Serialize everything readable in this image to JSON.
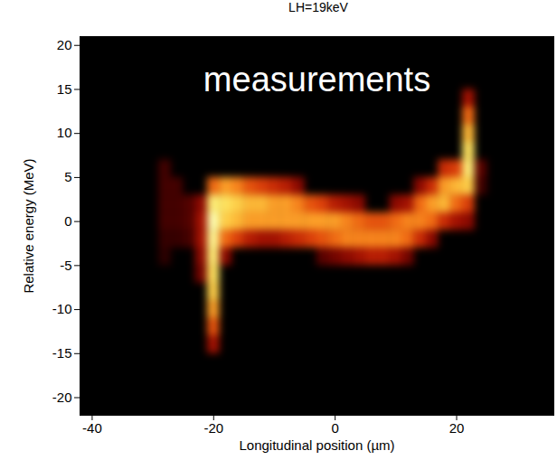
{
  "chart_data": {
    "type": "heatmap",
    "title": "LH=19keV",
    "annotation": "measurements",
    "xlabel": "Longitudinal position (µm)",
    "ylabel": "Relative energy (MeV)",
    "xlim": [
      -42,
      36
    ],
    "ylim": [
      -22,
      21
    ],
    "xticks": [
      -40,
      -20,
      0,
      20
    ],
    "yticks": [
      -20,
      -15,
      -10,
      -5,
      0,
      5,
      10,
      15,
      20
    ],
    "cell_size": [
      2,
      2
    ],
    "color_range": [
      0,
      1
    ],
    "cells": [
      [
        -28,
        6,
        0.15
      ],
      [
        -28,
        4,
        0.15
      ],
      [
        -28,
        2,
        0.15
      ],
      [
        -28,
        0,
        0.15
      ],
      [
        -28,
        -2,
        0.12
      ],
      [
        -28,
        -4,
        0.1
      ],
      [
        -26,
        4,
        0.15
      ],
      [
        -26,
        2,
        0.15
      ],
      [
        -26,
        0,
        0.15
      ],
      [
        -26,
        -2,
        0.12
      ],
      [
        -24,
        2,
        0.18
      ],
      [
        -24,
        0,
        0.18
      ],
      [
        -24,
        -2,
        0.15
      ],
      [
        -22,
        2,
        0.3
      ],
      [
        -22,
        0,
        0.35
      ],
      [
        -22,
        -2,
        0.35
      ],
      [
        -22,
        -4,
        0.3
      ],
      [
        -22,
        -6,
        0.25
      ],
      [
        -20,
        4,
        0.6
      ],
      [
        -20,
        2,
        0.9
      ],
      [
        -20,
        0,
        1
      ],
      [
        -20,
        -2,
        0.95
      ],
      [
        -20,
        -4,
        0.9
      ],
      [
        -20,
        -6,
        0.85
      ],
      [
        -20,
        -8,
        0.8
      ],
      [
        -20,
        -10,
        0.7
      ],
      [
        -20,
        -12,
        0.55
      ],
      [
        -20,
        -14,
        0.35
      ],
      [
        -18,
        4,
        0.7
      ],
      [
        -18,
        2,
        0.85
      ],
      [
        -18,
        0,
        0.8
      ],
      [
        -18,
        -2,
        0.6
      ],
      [
        -18,
        -4,
        0.3
      ],
      [
        -16,
        4,
        0.65
      ],
      [
        -16,
        2,
        0.8
      ],
      [
        -16,
        0,
        0.75
      ],
      [
        -16,
        -2,
        0.5
      ],
      [
        -14,
        4,
        0.55
      ],
      [
        -14,
        2,
        0.75
      ],
      [
        -14,
        0,
        0.7
      ],
      [
        -14,
        -2,
        0.4
      ],
      [
        -12,
        4,
        0.5
      ],
      [
        -12,
        2,
        0.75
      ],
      [
        -12,
        0,
        0.7
      ],
      [
        -12,
        -2,
        0.35
      ],
      [
        -10,
        4,
        0.45
      ],
      [
        -10,
        2,
        0.7
      ],
      [
        -10,
        0,
        0.7
      ],
      [
        -10,
        -2,
        0.35
      ],
      [
        -8,
        4,
        0.4
      ],
      [
        -8,
        2,
        0.7
      ],
      [
        -8,
        0,
        0.7
      ],
      [
        -8,
        -2,
        0.4
      ],
      [
        -6,
        4,
        0.3
      ],
      [
        -6,
        2,
        0.65
      ],
      [
        -6,
        0,
        0.7
      ],
      [
        -6,
        -2,
        0.45
      ],
      [
        -4,
        2,
        0.55
      ],
      [
        -4,
        0,
        0.7
      ],
      [
        -4,
        -2,
        0.5
      ],
      [
        -2,
        2,
        0.5
      ],
      [
        -2,
        0,
        0.7
      ],
      [
        -2,
        -2,
        0.55
      ],
      [
        -2,
        -4,
        0.2
      ],
      [
        0,
        2,
        0.4
      ],
      [
        0,
        0,
        0.7
      ],
      [
        0,
        -2,
        0.6
      ],
      [
        0,
        -4,
        0.25
      ],
      [
        2,
        2,
        0.35
      ],
      [
        2,
        0,
        0.65
      ],
      [
        2,
        -2,
        0.65
      ],
      [
        2,
        -4,
        0.3
      ],
      [
        4,
        2,
        0.3
      ],
      [
        4,
        0,
        0.6
      ],
      [
        4,
        -2,
        0.65
      ],
      [
        4,
        -4,
        0.35
      ],
      [
        6,
        0,
        0.55
      ],
      [
        6,
        -2,
        0.65
      ],
      [
        6,
        -4,
        0.4
      ],
      [
        8,
        0,
        0.55
      ],
      [
        8,
        -2,
        0.65
      ],
      [
        8,
        -4,
        0.4
      ],
      [
        10,
        2,
        0.3
      ],
      [
        10,
        0,
        0.6
      ],
      [
        10,
        -2,
        0.65
      ],
      [
        10,
        -4,
        0.35
      ],
      [
        12,
        2,
        0.35
      ],
      [
        12,
        0,
        0.65
      ],
      [
        12,
        -2,
        0.6
      ],
      [
        12,
        -4,
        0.25
      ],
      [
        14,
        4,
        0.3
      ],
      [
        14,
        2,
        0.6
      ],
      [
        14,
        0,
        0.65
      ],
      [
        14,
        -2,
        0.45
      ],
      [
        16,
        4,
        0.45
      ],
      [
        16,
        2,
        0.7
      ],
      [
        16,
        0,
        0.6
      ],
      [
        16,
        -2,
        0.3
      ],
      [
        18,
        6,
        0.45
      ],
      [
        18,
        4,
        0.7
      ],
      [
        18,
        2,
        0.75
      ],
      [
        18,
        0,
        0.45
      ],
      [
        20,
        6,
        0.5
      ],
      [
        20,
        4,
        0.75
      ],
      [
        20,
        2,
        0.6
      ],
      [
        20,
        0,
        0.35
      ],
      [
        22,
        14,
        0.35
      ],
      [
        22,
        12,
        0.6
      ],
      [
        22,
        10,
        0.75
      ],
      [
        22,
        8,
        0.85
      ],
      [
        22,
        6,
        0.9
      ],
      [
        22,
        4,
        0.8
      ],
      [
        22,
        2,
        0.5
      ],
      [
        22,
        0,
        0.3
      ],
      [
        24,
        6,
        0.2
      ],
      [
        24,
        4,
        0.15
      ]
    ]
  }
}
